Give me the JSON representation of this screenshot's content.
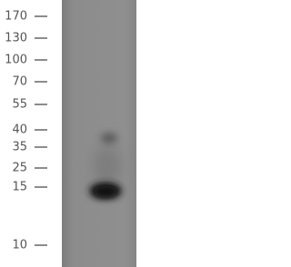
{
  "markers": [
    170,
    130,
    100,
    70,
    55,
    40,
    35,
    25,
    15,
    10
  ]
}
